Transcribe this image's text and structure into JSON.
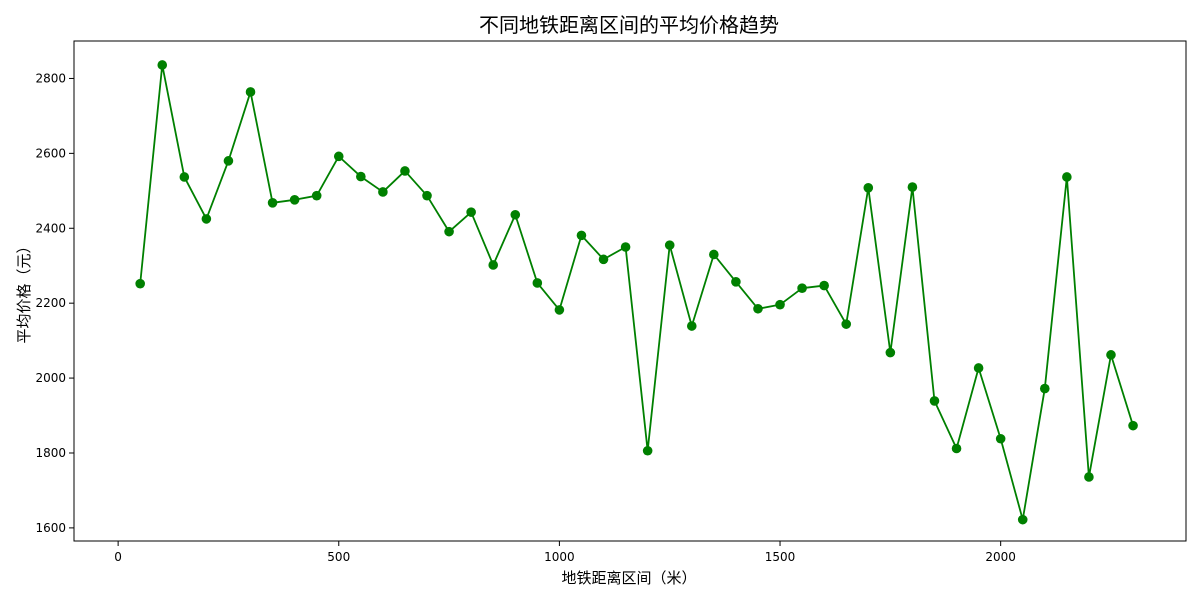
{
  "chart_data": {
    "type": "line",
    "title": "不同地铁距离区间的平均价格趋势",
    "xlabel": "地铁距离区间（米）",
    "ylabel": "平均价格（元）",
    "xlim": [
      -100,
      2420
    ],
    "ylim": [
      1565,
      2900
    ],
    "x_ticks": [
      0,
      500,
      1000,
      1500,
      2000
    ],
    "y_ticks": [
      1600,
      1800,
      2000,
      2200,
      2400,
      2600,
      2800
    ],
    "grid": false,
    "legend": "none",
    "series": [
      {
        "color": "#008000",
        "marker": "circle",
        "x": [
          50,
          100,
          150,
          200,
          250,
          300,
          350,
          400,
          450,
          500,
          550,
          600,
          650,
          700,
          750,
          800,
          850,
          900,
          950,
          1000,
          1050,
          1100,
          1150,
          1200,
          1250,
          1300,
          1350,
          1400,
          1450,
          1500,
          1550,
          1600,
          1650,
          1700,
          1750,
          1800,
          1850,
          1900,
          1950,
          2000,
          2050,
          2100,
          2150,
          2200,
          2250,
          2300
        ],
        "y": [
          2252,
          2836,
          2537,
          2425,
          2580,
          2764,
          2468,
          2476,
          2487,
          2592,
          2538,
          2497,
          2553,
          2487,
          2391,
          2443,
          2302,
          2436,
          2254,
          2182,
          2381,
          2317,
          2350,
          1806,
          2355,
          2139,
          2330,
          2257,
          2185,
          2196,
          2240,
          2247,
          2144,
          2508,
          2068,
          2510,
          1939,
          1812,
          2027,
          1838,
          1622,
          1972,
          2537,
          1736,
          2062,
          1873
        ]
      }
    ]
  }
}
